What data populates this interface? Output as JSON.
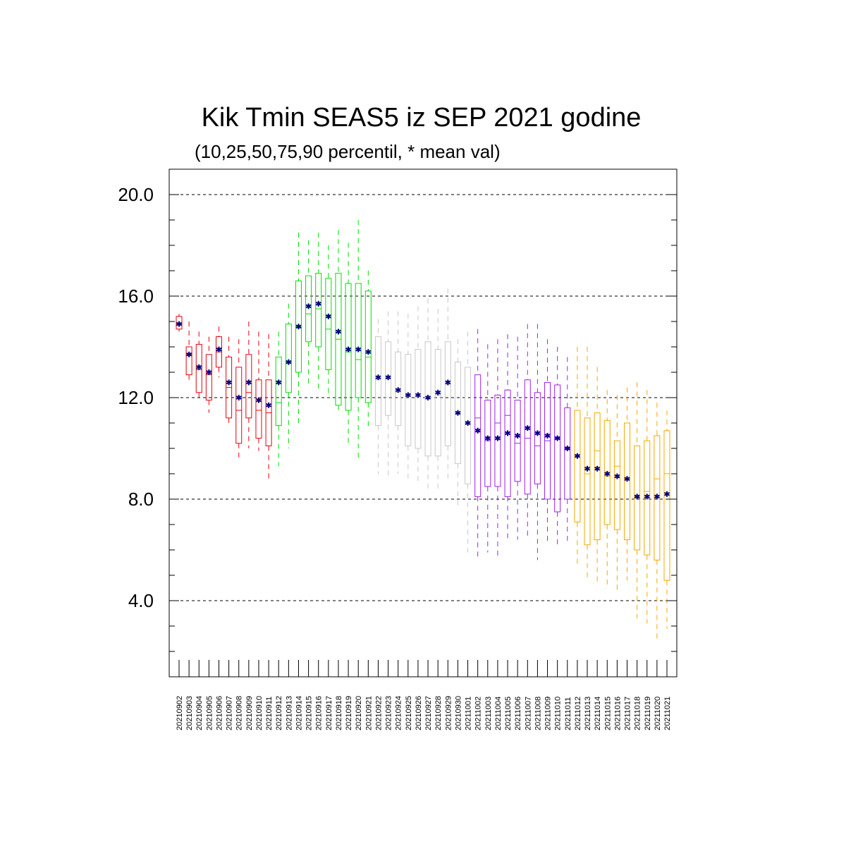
{
  "chart_data": {
    "type": "box",
    "title": "Kik Tmin SEAS5 iz SEP 2021 godine",
    "subtitle": "(10,25,50,75,90 percentil, * mean val)",
    "ylim": [
      1.0,
      21.0
    ],
    "yticks": [
      4.0,
      8.0,
      12.0,
      16.0,
      20.0
    ],
    "ytick_labels": [
      "4.0",
      "8.0",
      "12.0",
      "16.0",
      "20.0"
    ],
    "grid": "horizontal-dashed",
    "mean_marker": "*",
    "mean_color": "#000080",
    "categories": [
      "20210902",
      "20210903",
      "20210904",
      "20210905",
      "20210906",
      "20210907",
      "20210908",
      "20210909",
      "20210910",
      "20210911",
      "20210912",
      "20210913",
      "20210914",
      "20210915",
      "20210916",
      "20210917",
      "20210918",
      "20210919",
      "20210920",
      "20210921",
      "20210922",
      "20210923",
      "20210924",
      "20210925",
      "20210926",
      "20210927",
      "20210928",
      "20210929",
      "20210930",
      "20211001",
      "20211002",
      "20211003",
      "20211004",
      "20211005",
      "20211006",
      "20211007",
      "20211008",
      "20211009",
      "20211010",
      "20211011",
      "20211012",
      "20211013",
      "20211014",
      "20211015",
      "20211016",
      "20211017",
      "20211018",
      "20211019",
      "20211020",
      "20211021"
    ],
    "colors": [
      "#e8000b",
      "#e8000b",
      "#e8000b",
      "#e8000b",
      "#e8000b",
      "#e8000b",
      "#e8000b",
      "#e8000b",
      "#e8000b",
      "#e8000b",
      "#00e000",
      "#00e000",
      "#00e000",
      "#00e000",
      "#00e000",
      "#00e000",
      "#00e000",
      "#00e000",
      "#00e000",
      "#00e000",
      "#c8c8c8",
      "#c8c8c8",
      "#c8c8c8",
      "#c8c8c8",
      "#c8c8c8",
      "#c8c8c8",
      "#c8c8c8",
      "#c8c8c8",
      "#c8c8c8",
      "#c8c8c8",
      "#a020f0",
      "#a020f0",
      "#a020f0",
      "#a020f0",
      "#a020f0",
      "#a020f0",
      "#a020f0",
      "#a020f0",
      "#a020f0",
      "#a020f0",
      "#f5a800",
      "#f5a800",
      "#f5a800",
      "#f5a800",
      "#f5a800",
      "#f5a800",
      "#f5a800",
      "#f5a800",
      "#f5a800",
      "#f5a800"
    ],
    "p10": [
      14.6,
      12.6,
      12.0,
      11.4,
      12.8,
      11.0,
      9.5,
      10.0,
      9.9,
      8.8,
      9.3,
      10.0,
      11.0,
      12.4,
      12.2,
      12.0,
      11.4,
      10.1,
      9.6,
      10.8,
      9.0,
      8.9,
      9.0,
      8.7,
      8.6,
      8.4,
      8.3,
      8.8,
      7.6,
      5.9,
      5.7,
      5.9,
      5.7,
      6.4,
      6.4,
      6.4,
      5.6,
      6.2,
      6.1,
      6.3,
      5.4,
      4.9,
      4.6,
      4.6,
      4.4,
      4.8,
      3.3,
      3.1,
      2.4,
      2.9
    ],
    "p25": [
      14.7,
      12.9,
      12.2,
      11.9,
      13.2,
      11.2,
      10.2,
      11.2,
      10.4,
      10.1,
      10.9,
      12.2,
      13.0,
      14.2,
      14.0,
      13.1,
      11.7,
      11.5,
      12.0,
      11.8,
      10.9,
      11.3,
      10.9,
      10.1,
      10.0,
      9.7,
      9.7,
      10.1,
      9.4,
      8.6,
      8.1,
      8.5,
      8.5,
      8.1,
      8.7,
      8.2,
      8.6,
      8.0,
      7.5,
      8.0,
      7.1,
      6.2,
      6.4,
      7.0,
      6.8,
      6.4,
      6.0,
      5.8,
      5.6,
      4.8
    ],
    "p50": [
      14.9,
      13.7,
      13.1,
      12.9,
      13.8,
      12.4,
      11.5,
      12.2,
      11.5,
      11.4,
      11.8,
      13.4,
      14.8,
      15.3,
      15.5,
      14.7,
      14.3,
      13.8,
      13.5,
      13.6,
      12.7,
      12.8,
      12.2,
      12.1,
      12.0,
      12.0,
      12.1,
      12.5,
      11.4,
      11.0,
      11.2,
      10.3,
      11.0,
      11.3,
      10.2,
      10.4,
      10.1,
      10.3,
      10.4,
      10.0,
      9.7,
      9.0,
      9.9,
      8.9,
      9.3,
      8.8,
      8.1,
      8.3,
      8.8,
      9.0
    ],
    "p75": [
      15.2,
      14.0,
      14.1,
      13.7,
      14.4,
      13.6,
      13.2,
      13.7,
      12.7,
      12.7,
      13.6,
      14.9,
      16.6,
      16.8,
      16.9,
      16.7,
      16.9,
      16.5,
      16.5,
      16.2,
      14.4,
      14.2,
      13.8,
      13.7,
      13.9,
      14.2,
      13.9,
      14.2,
      13.4,
      13.2,
      12.9,
      11.9,
      12.1,
      12.3,
      11.9,
      12.7,
      12.2,
      12.6,
      12.5,
      11.6,
      11.5,
      11.2,
      11.4,
      11.1,
      10.3,
      11.0,
      10.1,
      10.3,
      10.5,
      10.7
    ],
    "p90": [
      15.3,
      15.0,
      14.6,
      14.4,
      14.8,
      14.4,
      14.3,
      15.0,
      14.6,
      14.5,
      14.6,
      15.7,
      18.5,
      18.2,
      18.5,
      18.0,
      18.6,
      18.1,
      19.0,
      17.0,
      15.1,
      15.4,
      15.4,
      15.3,
      15.6,
      15.9,
      15.5,
      16.3,
      14.3,
      14.6,
      14.7,
      14.1,
      14.3,
      14.5,
      14.4,
      14.9,
      14.9,
      14.3,
      14.0,
      13.6,
      14.0,
      14.0,
      13.2,
      12.3,
      12.1,
      12.4,
      12.6,
      12.3,
      11.8,
      11.5
    ],
    "mean": [
      14.9,
      13.7,
      13.2,
      13.0,
      13.9,
      12.6,
      12.0,
      12.6,
      11.9,
      11.7,
      12.6,
      13.4,
      14.8,
      15.6,
      15.7,
      15.2,
      14.6,
      13.9,
      13.9,
      13.8,
      12.8,
      12.8,
      12.3,
      12.1,
      12.1,
      12.0,
      12.2,
      12.6,
      11.4,
      11.0,
      10.7,
      10.4,
      10.4,
      10.6,
      10.5,
      10.8,
      10.6,
      10.5,
      10.4,
      10.0,
      9.7,
      9.2,
      9.2,
      9.0,
      8.9,
      8.8,
      8.1,
      8.1,
      8.1,
      8.2
    ]
  }
}
